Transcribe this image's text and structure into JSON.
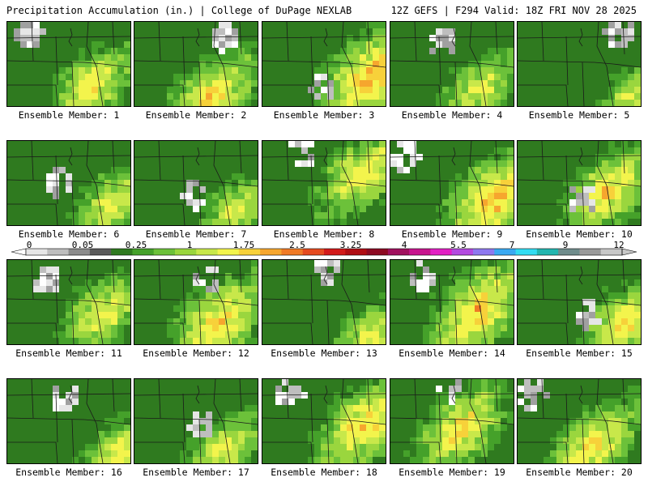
{
  "header": {
    "left": "Precipitation Accumulation (in.) | College of DuPage NEXLAB",
    "right": "12Z GEFS | F294 Valid: 18Z FRI NOV 28 2025"
  },
  "colorbar": {
    "tick_labels": [
      "0",
      "0.05",
      "0.25",
      "1",
      "1.75",
      "2.5",
      "3.25",
      "4",
      "5.5",
      "7",
      "9",
      "12"
    ],
    "colors": [
      "#e6e6e6",
      "#bebebe",
      "#8c8c8c",
      "#5a5a5a",
      "#2f7a1f",
      "#45a12a",
      "#6cc13a",
      "#9ad63e",
      "#c8e84a",
      "#f3f44c",
      "#f7d13a",
      "#f6a62e",
      "#f07a26",
      "#e54a1f",
      "#d21a1a",
      "#b00d14",
      "#8d0a22",
      "#a0115e",
      "#c7148e",
      "#e21fc4",
      "#b34ae0",
      "#8e78f0",
      "#3aa9f2",
      "#32dcf2",
      "#22b6b0",
      "#6f8c8c",
      "#9a9a9a",
      "#c8c8c8"
    ]
  },
  "panels": [
    {
      "label": "Ensemble Member: 1",
      "hot": [
        0.66,
        0.72
      ],
      "wet": 0.62,
      "gray": [
        0.15,
        0.1
      ]
    },
    {
      "label": "Ensemble Member: 2",
      "hot": [
        0.6,
        0.85
      ],
      "wet": 0.7,
      "gray": [
        0.7,
        0.15
      ]
    },
    {
      "label": "Ensemble Member: 3",
      "hot": [
        0.85,
        0.6
      ],
      "wet": 0.85,
      "gray": [
        0.45,
        0.75
      ]
    },
    {
      "label": "Ensemble Member: 4",
      "hot": [
        0.7,
        0.75
      ],
      "wet": 0.5,
      "gray": [
        0.4,
        0.2
      ]
    },
    {
      "label": "Ensemble Member: 5",
      "hot": [
        0.9,
        0.85
      ],
      "wet": 0.4,
      "gray": [
        0.8,
        0.1
      ]
    },
    {
      "label": "Ensemble Member: 6",
      "hot": [
        0.85,
        0.7
      ],
      "wet": 0.55,
      "gray": [
        0.4,
        0.45
      ]
    },
    {
      "label": "Ensemble Member: 7",
      "hot": [
        0.8,
        0.8
      ],
      "wet": 0.5,
      "gray": [
        0.45,
        0.6
      ]
    },
    {
      "label": "Ensemble Member: 8",
      "hot": [
        0.78,
        0.35
      ],
      "wet": 0.65,
      "gray": [
        0.3,
        0.1
      ]
    },
    {
      "label": "Ensemble Member: 9",
      "hot": [
        0.82,
        0.65
      ],
      "wet": 0.85,
      "gray": [
        0.1,
        0.15
      ]
    },
    {
      "label": "Ensemble Member: 10",
      "hot": [
        0.72,
        0.55
      ],
      "wet": 0.7,
      "gray": [
        0.5,
        0.65
      ]
    },
    {
      "label": "Ensemble Member: 11",
      "hot": [
        0.75,
        0.6
      ],
      "wet": 0.6,
      "gray": [
        0.3,
        0.2
      ]
    },
    {
      "label": "Ensemble Member: 12",
      "hot": [
        0.65,
        0.7
      ],
      "wet": 0.75,
      "gray": [
        0.55,
        0.2
      ]
    },
    {
      "label": "Ensemble Member: 13",
      "hot": [
        0.85,
        0.85
      ],
      "wet": 0.5,
      "gray": [
        0.5,
        0.1
      ]
    },
    {
      "label": "Ensemble Member: 14",
      "hot": [
        0.7,
        0.55
      ],
      "wet": 0.8,
      "gray": [
        0.25,
        0.15
      ]
    },
    {
      "label": "Ensemble Member: 15",
      "hot": [
        0.85,
        0.7
      ],
      "wet": 0.65,
      "gray": [
        0.55,
        0.6
      ]
    },
    {
      "label": "Ensemble Member: 16",
      "hot": [
        0.9,
        0.85
      ],
      "wet": 0.6,
      "gray": [
        0.45,
        0.2
      ]
    },
    {
      "label": "Ensemble Member: 17",
      "hot": [
        0.7,
        0.8
      ],
      "wet": 0.55,
      "gray": [
        0.5,
        0.5
      ]
    },
    {
      "label": "Ensemble Member: 18",
      "hot": [
        0.8,
        0.5
      ],
      "wet": 0.75,
      "gray": [
        0.2,
        0.15
      ]
    },
    {
      "label": "Ensemble Member: 19",
      "hot": [
        0.55,
        0.55
      ],
      "wet": 0.7,
      "gray": [
        0.45,
        0.1
      ]
    },
    {
      "label": "Ensemble Member: 20",
      "hot": [
        0.6,
        0.75
      ],
      "wet": 0.7,
      "gray": [
        0.1,
        0.15
      ]
    }
  ]
}
